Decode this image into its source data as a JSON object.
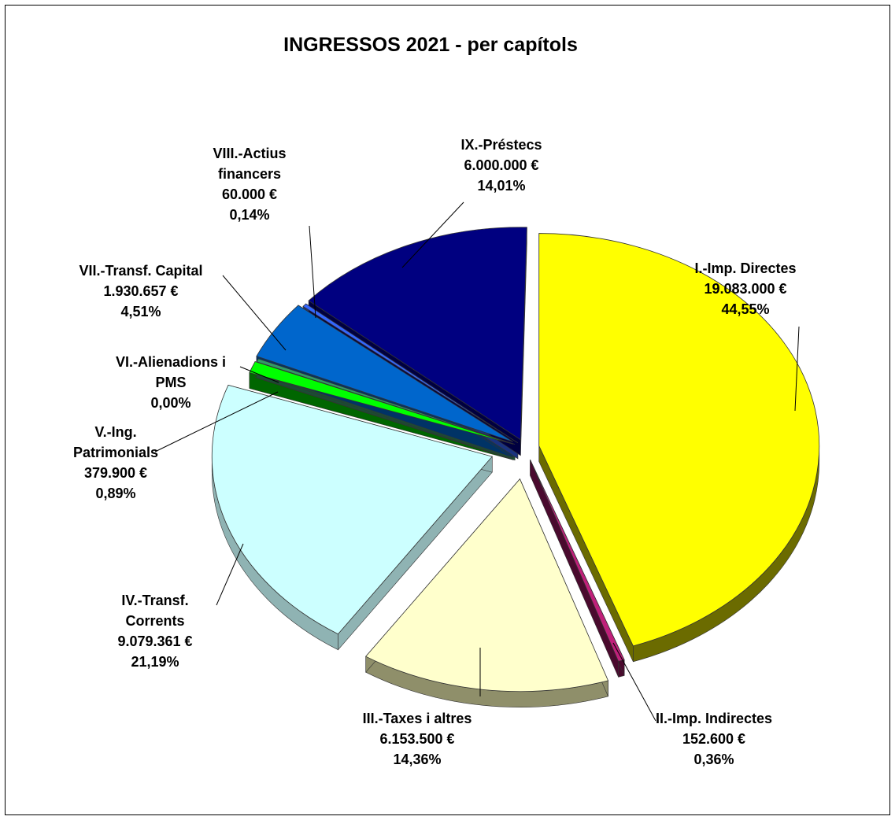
{
  "chart_data": {
    "type": "pie",
    "title": "INGRESSOS 2021 - per capítols",
    "slices": [
      {
        "label": "I.-Imp. Directes",
        "label_lines": [
          "I.-Imp. Directes"
        ],
        "value_text": "19.083.000 €",
        "percent_text": "44,55%",
        "value": 19083000,
        "percent": 44.55,
        "color": "#ffff00",
        "side_color": "#6b6b00"
      },
      {
        "label": "II.-Imp. Indirectes",
        "label_lines": [
          "II.-Imp. Indirectes"
        ],
        "value_text": "152.600 €",
        "percent_text": "0,36%",
        "value": 152600,
        "percent": 0.36,
        "color": "#c0207a",
        "side_color": "#4a0a2e"
      },
      {
        "label": "III.-Taxes i altres",
        "label_lines": [
          "III.-Taxes i altres"
        ],
        "value_text": "6.153.500 €",
        "percent_text": "14,36%",
        "value": 6153500,
        "percent": 14.36,
        "color": "#ffffcc",
        "side_color": "#8f8f6a"
      },
      {
        "label": "IV.-Transf. Corrents",
        "label_lines": [
          "IV.-Transf.",
          "Corrents"
        ],
        "value_text": "9.079.361 €",
        "percent_text": "21,19%",
        "value": 9079361,
        "percent": 21.19,
        "color": "#ccffff",
        "side_color": "#8fb3b3"
      },
      {
        "label": "V.-Ing. Patrimonials",
        "label_lines": [
          "V.-Ing.",
          "Patrimonials"
        ],
        "value_text": "379.900 €",
        "percent_text": "0,89%",
        "value": 379900,
        "percent": 0.89,
        "color": "#00ff00",
        "side_color": "#006600"
      },
      {
        "label": "VI.-Alienadions i PMS",
        "label_lines": [
          "VI.-Alienadions  i",
          "PMS"
        ],
        "value_text": "",
        "percent_text": "0,00%",
        "value": 0,
        "percent": 0.0,
        "color": "#339966",
        "side_color": "#1a4d33"
      },
      {
        "label": "VII.-Transf. Capital",
        "label_lines": [
          "VII.-Transf. Capital"
        ],
        "value_text": "1.930.657 €",
        "percent_text": "4,51%",
        "value": 1930657,
        "percent": 4.51,
        "color": "#0066cc",
        "side_color": "#003366"
      },
      {
        "label": "VIII.-Actius financers",
        "label_lines": [
          "VIII.-Actius",
          "financers"
        ],
        "value_text": "60.000 €",
        "percent_text": "0,14%",
        "value": 60000,
        "percent": 0.14,
        "color": "#3366ff",
        "side_color": "#1a3380"
      },
      {
        "label": "IX.-Préstecs",
        "label_lines": [
          "IX.-Préstecs"
        ],
        "value_text": "6.000.000 €",
        "percent_text": "14,01%",
        "value": 6000000,
        "percent": 14.01,
        "color": "#000080",
        "side_color": "#000040"
      }
    ]
  }
}
